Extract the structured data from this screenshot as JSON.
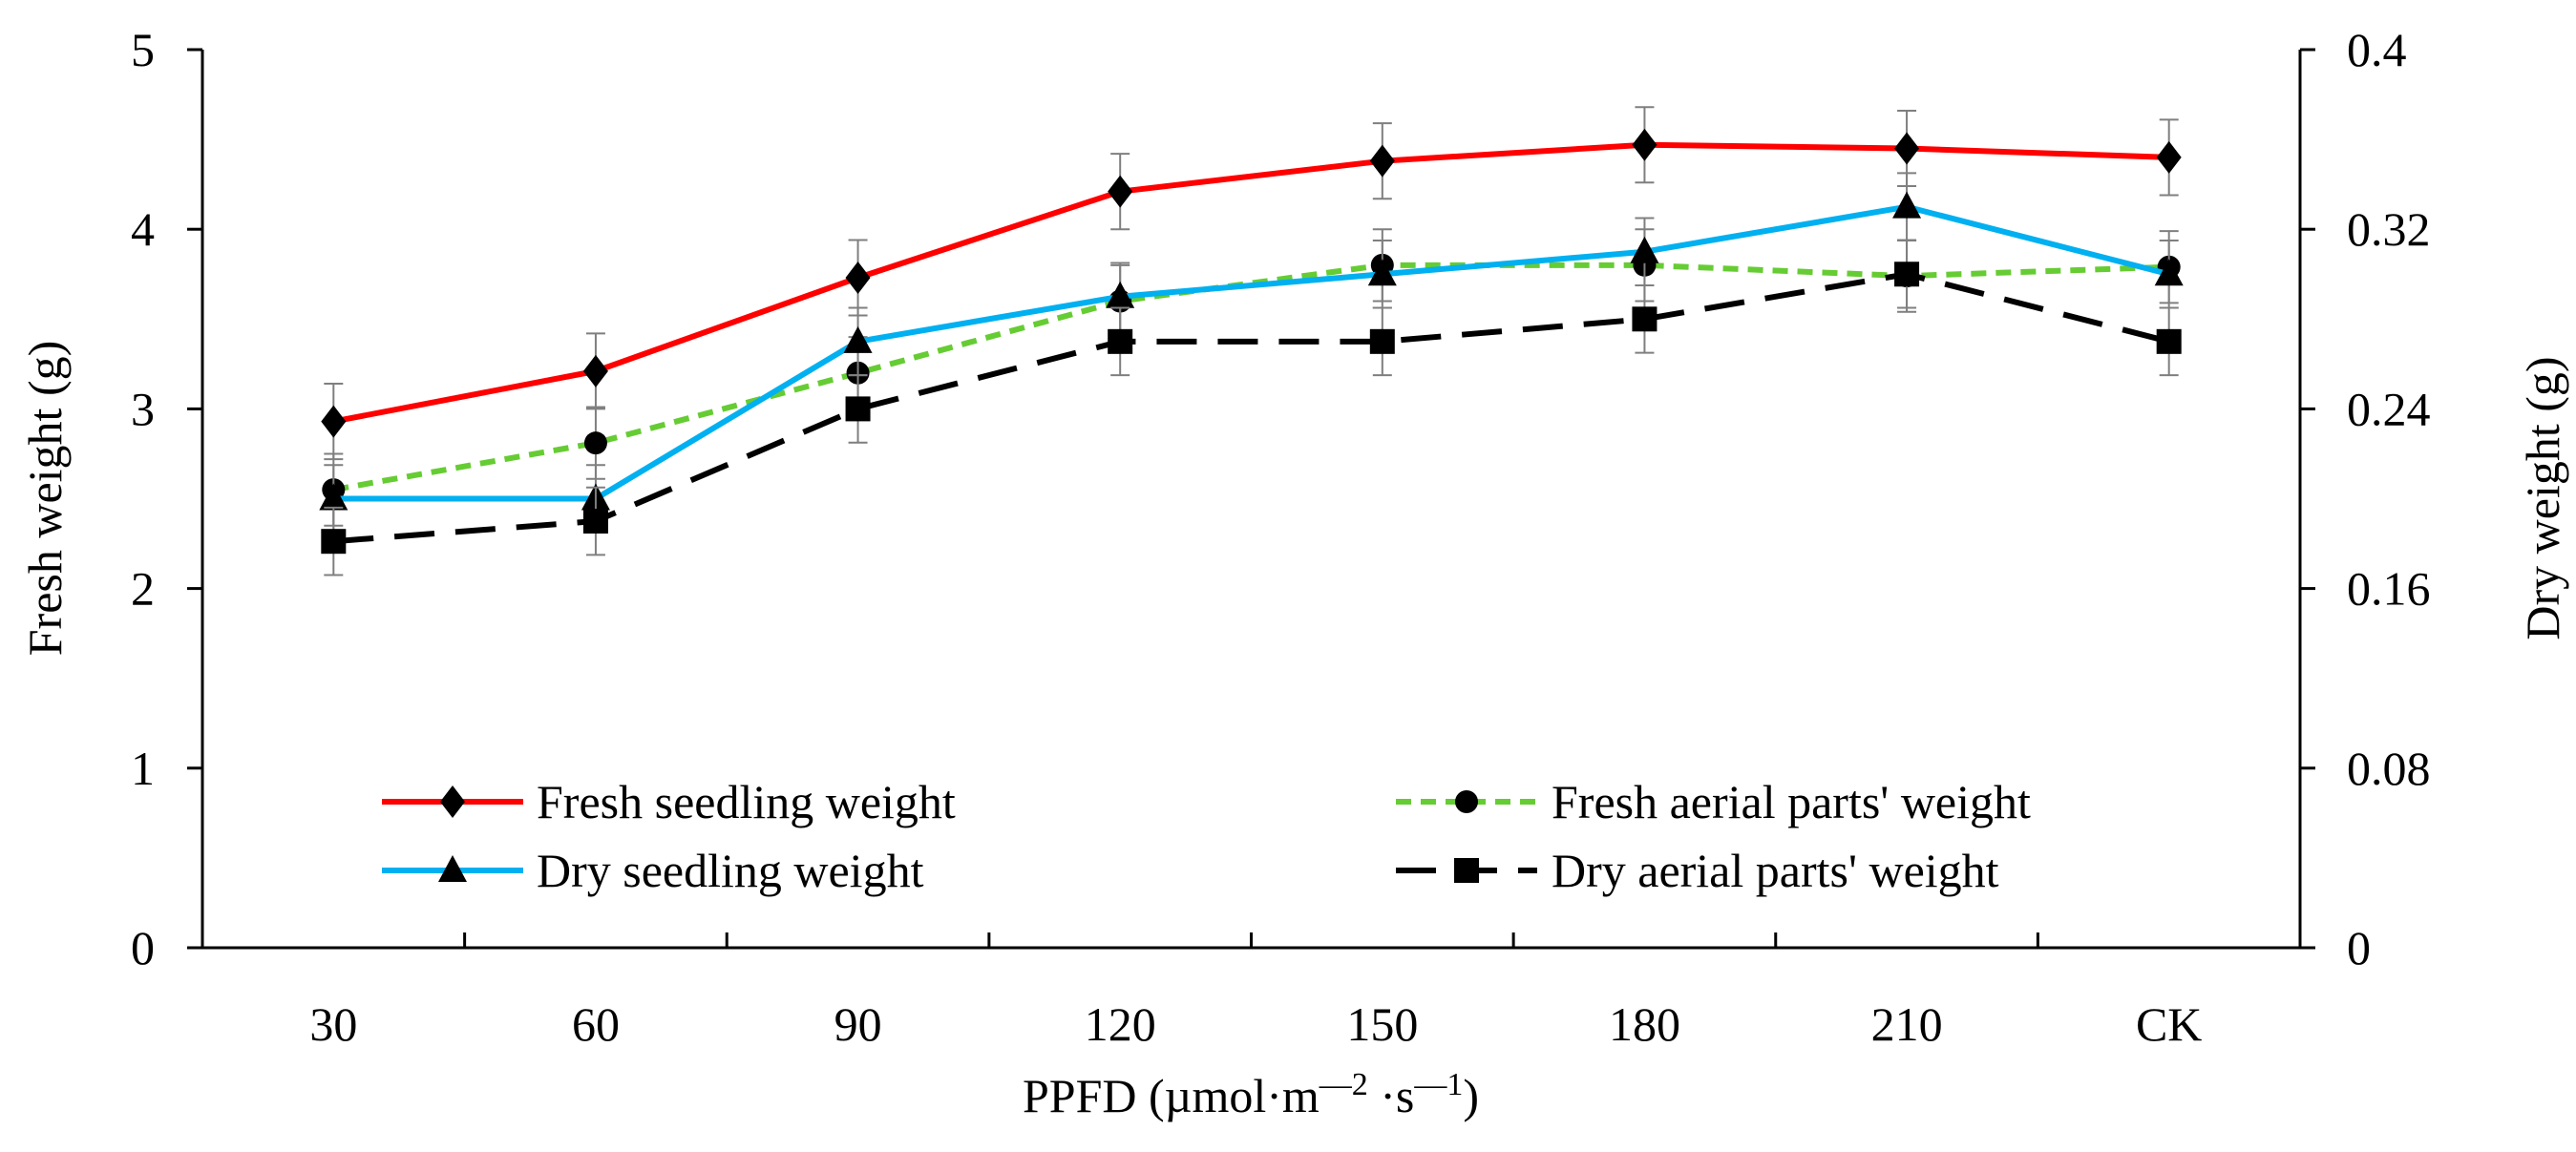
{
  "chart_data": {
    "type": "line",
    "categories": [
      "30",
      "60",
      "90",
      "120",
      "150",
      "180",
      "210",
      "CK"
    ],
    "xlabel": "PPFD (µmol·m—² ·s—¹)",
    "ylabel_left": "Fresh weight (g)",
    "ylabel_right": "Dry weight (g)",
    "ylim_left": [
      0,
      5
    ],
    "ylim_right": [
      0,
      0.4
    ],
    "yticks_left": [
      "0",
      "1",
      "2",
      "3",
      "4",
      "5"
    ],
    "yticks_right": [
      "0",
      "0.08",
      "0.16",
      "0.24",
      "0.32",
      "0.4"
    ],
    "grid": false,
    "legend_position": "lower-center",
    "series": [
      {
        "name": "Fresh seedling weight",
        "axis": "left",
        "color": "#ff0000",
        "marker": "diamond",
        "dash": "solid",
        "values": [
          2.93,
          3.21,
          3.73,
          4.21,
          4.38,
          4.47,
          4.45,
          4.4
        ],
        "errors": [
          0.21,
          0.21,
          0.21,
          0.21,
          0.21,
          0.21,
          0.21,
          0.21
        ]
      },
      {
        "name": "Fresh aerial parts' weight",
        "axis": "left",
        "color": "#66cc33",
        "marker": "circle",
        "dash": "short",
        "values": [
          2.55,
          2.81,
          3.2,
          3.6,
          3.8,
          3.8,
          3.74,
          3.79
        ],
        "errors": [
          0.2,
          0.2,
          0.2,
          0.2,
          0.2,
          0.2,
          0.2,
          0.2
        ]
      },
      {
        "name": "Dry seedling weight",
        "axis": "right",
        "color": "#00b0f0",
        "marker": "triangle",
        "dash": "solid",
        "values": [
          0.2,
          0.2,
          0.27,
          0.29,
          0.3,
          0.31,
          0.33,
          0.3
        ],
        "errors": [
          0.015,
          0.015,
          0.015,
          0.015,
          0.015,
          0.015,
          0.015,
          0.015
        ]
      },
      {
        "name": "Dry aerial parts' weight",
        "axis": "right",
        "color": "#000000",
        "marker": "square",
        "dash": "long",
        "values": [
          0.181,
          0.19,
          0.24,
          0.27,
          0.27,
          0.28,
          0.3,
          0.27
        ],
        "errors": [
          0.015,
          0.015,
          0.015,
          0.015,
          0.015,
          0.015,
          0.015,
          0.015
        ]
      }
    ]
  }
}
